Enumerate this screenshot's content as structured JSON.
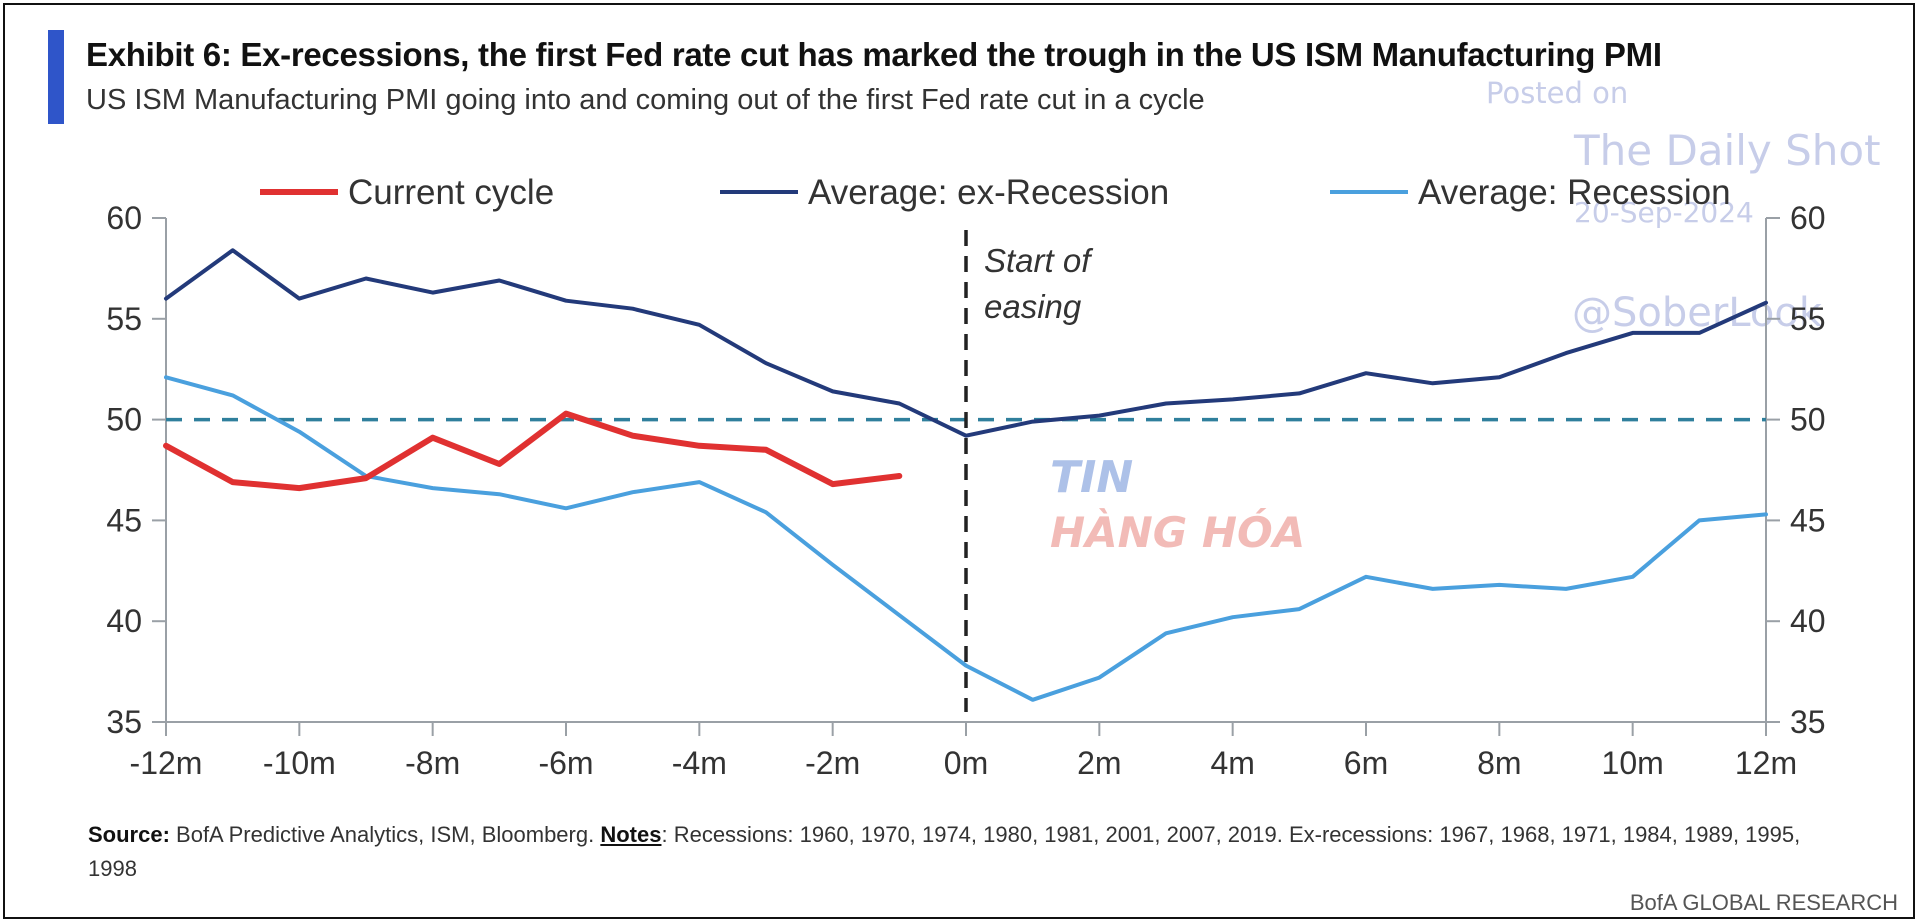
{
  "title": "Exhibit 6: Ex-recessions, the first Fed rate cut has marked the trough in the US ISM Manufacturing PMI",
  "subtitle": "US ISM Manufacturing PMI going into and coming out of the first Fed rate cut in a cycle",
  "watermark": {
    "posted": "Posted on",
    "name": "The Daily Shot",
    "date": "20-Sep-2024",
    "handle": "@SoberLook"
  },
  "logo": {
    "line1": "TIN",
    "line2": "HÀNG HÓA"
  },
  "footer": {
    "source_label": "Source:",
    "source_text": " BofA Predictive Analytics, ISM, Bloomberg. ",
    "notes_label": "Notes",
    "notes_text": ": Recessions: 1960, 1970, 1974, 1980, 1981, 2001, 2007, 2019. Ex-recessions: 1967, 1968, 1971, 1984, 1989, 1995, 1998",
    "brand": "BofA GLOBAL RESEARCH"
  },
  "colors": {
    "current": "#e03131",
    "ex_recession": "#233a7a",
    "recession": "#4aa0de",
    "reference": "#2f7f9c",
    "axis": "#9aa0a6"
  },
  "chart_data": {
    "type": "line",
    "title": "Exhibit 6: Ex-recessions, the first Fed rate cut has marked the trough in the US ISM Manufacturing PMI",
    "subtitle": "US ISM Manufacturing PMI going into and coming out of the first Fed rate cut in a cycle",
    "x_ticks": [
      "-12m",
      "-10m",
      "-8m",
      "-6m",
      "-4m",
      "-2m",
      "0m",
      "2m",
      "4m",
      "6m",
      "8m",
      "10m",
      "12m"
    ],
    "x_tick_values": [
      -12,
      -10,
      -8,
      -6,
      -4,
      -2,
      0,
      2,
      4,
      6,
      8,
      10,
      12
    ],
    "x_range": [
      -12,
      12
    ],
    "ylim": [
      35,
      60
    ],
    "y_ticks": [
      35,
      40,
      45,
      50,
      55,
      60
    ],
    "y_axis_right": true,
    "grid": false,
    "legend_position": "top",
    "reference_line": {
      "y": 50,
      "style": "dashed"
    },
    "vertical_marker": {
      "x": 0,
      "style": "dashed",
      "label_line1": "Start of",
      "label_line2": "easing"
    },
    "series": [
      {
        "name": "Current cycle",
        "color_key": "current",
        "x": [
          -12,
          -11,
          -10,
          -9,
          -8,
          -7,
          -6,
          -5,
          -4,
          -3,
          -2,
          -1
        ],
        "values": [
          48.7,
          46.9,
          46.6,
          47.1,
          49.1,
          47.8,
          50.3,
          49.2,
          48.7,
          48.5,
          46.8,
          47.2
        ]
      },
      {
        "name": "Average: ex-Recession",
        "color_key": "ex_recession",
        "x": [
          -12,
          -11,
          -10,
          -9,
          -8,
          -7,
          -6,
          -5,
          -4,
          -3,
          -2,
          -1,
          0,
          1,
          2,
          3,
          4,
          5,
          6,
          7,
          8,
          9,
          10,
          11,
          12
        ],
        "values": [
          56.0,
          58.4,
          56.0,
          57.0,
          56.3,
          56.9,
          55.9,
          55.5,
          54.7,
          52.8,
          51.4,
          50.8,
          49.2,
          49.9,
          50.2,
          50.8,
          51.0,
          51.3,
          52.3,
          51.8,
          52.1,
          53.3,
          54.3,
          54.3,
          55.8
        ]
      },
      {
        "name": "Average: Recession",
        "color_key": "recession",
        "x": [
          -12,
          -11,
          -10,
          -9,
          -8,
          -7,
          -6,
          -5,
          -4,
          -3,
          -2,
          -1,
          0,
          1,
          2,
          3,
          4,
          5,
          6,
          7,
          8,
          9,
          10,
          11,
          12
        ],
        "values": [
          52.1,
          51.2,
          49.4,
          47.2,
          46.6,
          46.3,
          45.6,
          46.4,
          46.9,
          45.4,
          42.8,
          40.3,
          37.8,
          36.1,
          37.2,
          39.4,
          40.2,
          40.6,
          42.2,
          41.6,
          41.8,
          41.6,
          42.2,
          45.0,
          45.3
        ]
      }
    ]
  }
}
